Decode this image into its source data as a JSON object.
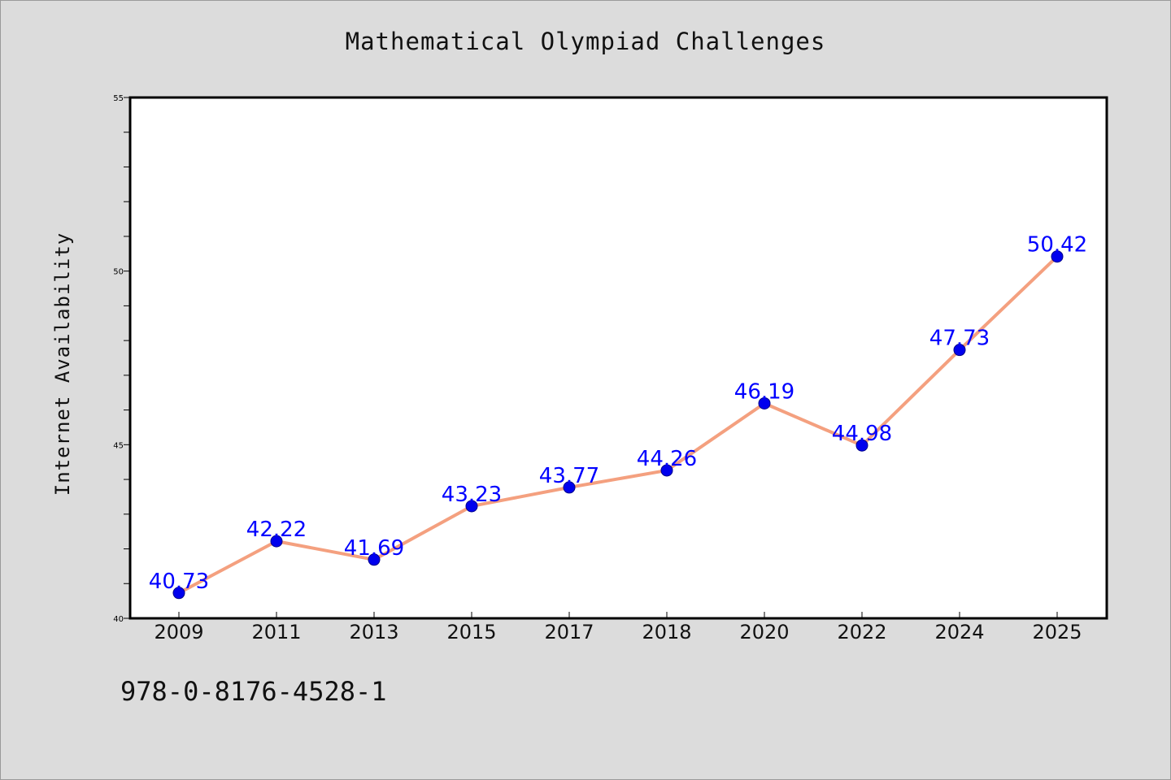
{
  "chart_data": {
    "type": "line",
    "title": "Mathematical Olympiad Challenges",
    "xlabel": "",
    "ylabel": "Internet Availability",
    "categories": [
      "2009",
      "2011",
      "2013",
      "2015",
      "2017",
      "2018",
      "2020",
      "2022",
      "2024",
      "2025"
    ],
    "values": [
      40.73,
      42.22,
      41.69,
      43.23,
      43.77,
      44.26,
      46.19,
      44.98,
      47.73,
      50.42
    ],
    "data_labels": [
      "40.73",
      "42.22",
      "41.69",
      "43.23",
      "43.77",
      "44.26",
      "46.19",
      "44.98",
      "47.73",
      "50.42"
    ],
    "ylim": [
      40,
      55
    ],
    "y_ticks": [
      "40",
      "45",
      "50",
      "55"
    ],
    "grid": false,
    "legend": "none",
    "colors": {
      "line": "#f4a07f",
      "marker": "#0000ee",
      "data_label": "#0000ff",
      "plot_background": "#ffffff",
      "page_background": "#dcdcdc"
    }
  },
  "footer": {
    "code": "978-0-8176-4528-1"
  }
}
